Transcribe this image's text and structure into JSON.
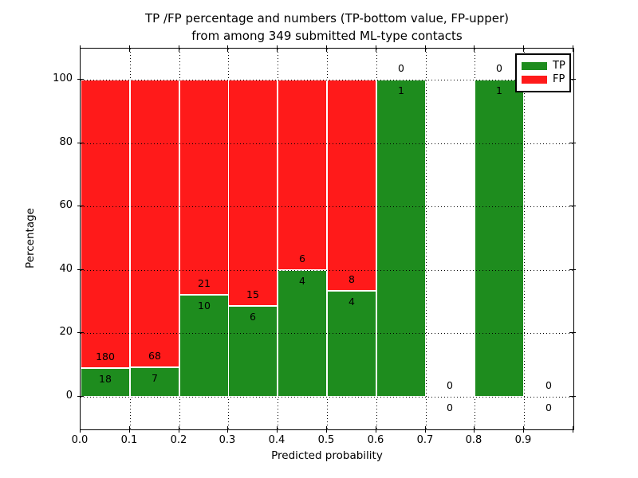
{
  "title": {
    "line1": "TP /FP percentage and numbers (TP-bottom value, FP-upper)",
    "line2": "from among 349 submitted ML-type contacts"
  },
  "axes": {
    "xlabel": "Predicted probability",
    "ylabel": "Percentage",
    "x_tick_labels": [
      "0.0",
      "0.1",
      "0.2",
      "0.3",
      "0.4",
      "0.5",
      "0.6",
      "0.7",
      "0.8",
      "0.9"
    ],
    "y_tick_labels": [
      "0",
      "20",
      "40",
      "60",
      "80",
      "100"
    ],
    "y_tick_values": [
      0,
      20,
      40,
      60,
      80,
      100
    ]
  },
  "colors": {
    "tp_green": "#1e8c1e",
    "fp_red": "#ff1a1a",
    "grid": "#000000",
    "bar_edge": "#ffffff",
    "background": "#ffffff"
  },
  "legend": {
    "position": "upper right",
    "entries": [
      {
        "label": "TP",
        "color": "#1e8c1e"
      },
      {
        "label": "FP",
        "color": "#ff1a1a"
      }
    ]
  },
  "chart_data": {
    "type": "bar",
    "stacked": true,
    "title": "TP /FP percentage and numbers (TP-bottom value, FP-upper)\nfrom among 349 submitted ML-type contacts",
    "xlabel": "Predicted probability",
    "ylabel": "Percentage",
    "xlim": [
      0.0,
      1.0
    ],
    "ylim_percent": [
      0,
      100
    ],
    "grid": "dotted",
    "legend_position": "upper right",
    "total_contacts": 349,
    "bin_edges": [
      0.0,
      0.1,
      0.2,
      0.3,
      0.4,
      0.5,
      0.6,
      0.7,
      0.8,
      0.9,
      1.0
    ],
    "categories": [
      "0.0-0.1",
      "0.1-0.2",
      "0.2-0.3",
      "0.3-0.4",
      "0.4-0.5",
      "0.5-0.6",
      "0.6-0.7",
      "0.7-0.8",
      "0.8-0.9",
      "0.9-1.0"
    ],
    "series": [
      {
        "name": "TP",
        "color": "#1e8c1e",
        "counts": [
          18,
          7,
          10,
          6,
          4,
          4,
          1,
          0,
          1,
          0
        ],
        "percents": [
          9.09,
          9.33,
          32.26,
          28.57,
          40.0,
          33.33,
          100.0,
          null,
          100.0,
          null
        ]
      },
      {
        "name": "FP",
        "color": "#ff1a1a",
        "counts": [
          180,
          68,
          21,
          15,
          6,
          8,
          0,
          0,
          0,
          0
        ],
        "percents": [
          90.91,
          90.67,
          67.74,
          71.43,
          60.0,
          66.67,
          0.0,
          null,
          0.0,
          null
        ]
      }
    ]
  }
}
